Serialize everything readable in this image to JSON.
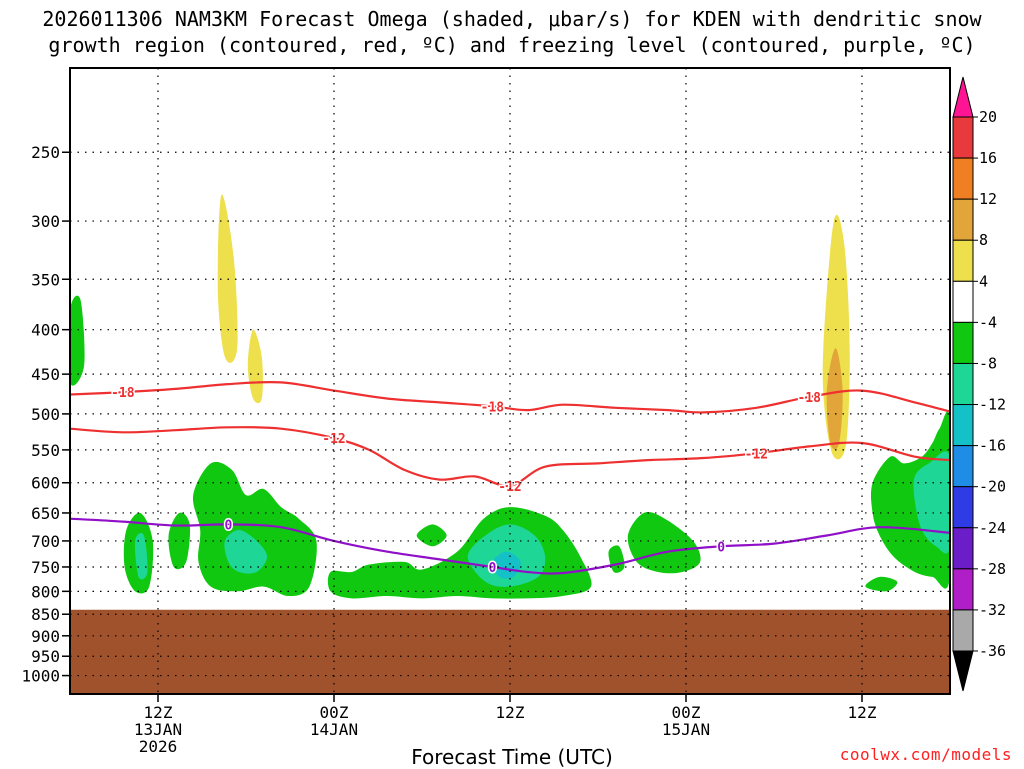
{
  "title_line_1": "2026011306 NAM3KM Forecast Omega (shaded, μbar/s) for KDEN with dendritic snow",
  "title_line_2": "growth region (contoured, red, ºC) and freezing level (contoured, purple, ºC)",
  "watermark": "coolwx.com/models",
  "chart_data": {
    "type": "contour",
    "xlabel": "Forecast Time (UTC)",
    "x_range_hours": [
      -5,
      45
    ],
    "x_ticks": [
      {
        "hour": 0,
        "lines": [
          "12Z",
          "13JAN",
          "2026"
        ]
      },
      {
        "hour": 10,
        "lines": [
          "00Z",
          "14JAN"
        ]
      },
      {
        "hour": 20,
        "lines": [
          "12Z"
        ]
      },
      {
        "hour": 30,
        "lines": [
          "00Z",
          "15JAN"
        ]
      },
      {
        "hour": 40,
        "lines": [
          "12Z"
        ]
      }
    ],
    "y_axis_pressure_hpa": [
      250,
      300,
      350,
      400,
      450,
      500,
      550,
      600,
      650,
      700,
      750,
      800,
      850,
      900,
      950,
      1000
    ],
    "y_range_hpa": [
      200,
      1050
    ],
    "grid": "dotted",
    "surface_pressure_hpa": 840,
    "colorbar": {
      "labels": [
        20,
        16,
        12,
        8,
        4,
        -4,
        -8,
        -12,
        -16,
        -20,
        -24,
        -28,
        -32,
        -36
      ],
      "colors": [
        "#ff1493",
        "#e8393c",
        "#ef7f22",
        "#e1a53a",
        "#eee04c",
        "#ffffff",
        "#0fc80f",
        "#1ed796",
        "#13c1c6",
        "#1f8ce6",
        "#2f3ce6",
        "#6b1ec8",
        "#b01ec8",
        "#a9a9a9",
        "#000000"
      ]
    },
    "isotherm_dgz": {
      "color": "#ee3030",
      "lines": [
        {
          "value": -18,
          "label": "-18",
          "points": [
            [
              -5,
              475
            ],
            [
              -2,
              472
            ],
            [
              1,
              468
            ],
            [
              4,
              462
            ],
            [
              7,
              460
            ],
            [
              10,
              470
            ],
            [
              13,
              480
            ],
            [
              16,
              485
            ],
            [
              19,
              490
            ],
            [
              21,
              495
            ],
            [
              23,
              488
            ],
            [
              26,
              492
            ],
            [
              29,
              495
            ],
            [
              31,
              498
            ],
            [
              34,
              492
            ],
            [
              37,
              478
            ],
            [
              40,
              470
            ],
            [
              43,
              485
            ],
            [
              45,
              497
            ]
          ]
        },
        {
          "value": -12,
          "label": "-12",
          "points": [
            [
              -5,
              520
            ],
            [
              -2,
              525
            ],
            [
              1,
              522
            ],
            [
              4,
              518
            ],
            [
              7,
              520
            ],
            [
              10,
              533
            ],
            [
              12,
              550
            ],
            [
              14,
              580
            ],
            [
              16,
              595
            ],
            [
              18,
              590
            ],
            [
              20,
              605
            ],
            [
              22,
              575
            ],
            [
              25,
              570
            ],
            [
              28,
              565
            ],
            [
              31,
              562
            ],
            [
              34,
              555
            ],
            [
              37,
              545
            ],
            [
              40,
              540
            ],
            [
              43,
              560
            ],
            [
              45,
              565
            ]
          ]
        }
      ]
    },
    "freezing_level": {
      "color": "#9010c8",
      "value": 0,
      "label": "0",
      "points": [
        [
          -5,
          660
        ],
        [
          -2,
          665
        ],
        [
          1,
          672
        ],
        [
          4,
          670
        ],
        [
          7,
          675
        ],
        [
          10,
          700
        ],
        [
          13,
          720
        ],
        [
          16,
          735
        ],
        [
          19,
          750
        ],
        [
          21,
          760
        ],
        [
          23,
          762
        ],
        [
          26,
          745
        ],
        [
          29,
          720
        ],
        [
          32,
          710
        ],
        [
          35,
          705
        ],
        [
          38,
          690
        ],
        [
          41,
          675
        ],
        [
          45,
          685
        ]
      ]
    },
    "omega_shaded_regions": [
      {
        "level": 4,
        "points": [
          [
            -3,
            250
          ],
          [
            -2.6,
            330
          ],
          [
            -3,
            400
          ],
          [
            -2.4,
            430
          ],
          [
            -1.8,
            380
          ],
          [
            -1.9,
            280
          ]
        ]
      },
      {
        "level": 4,
        "points": [
          [
            -0.5,
            600
          ],
          [
            0.5,
            560
          ],
          [
            1,
            540
          ],
          [
            0.6,
            620
          ],
          [
            -0.2,
            640
          ]
        ]
      },
      {
        "level": 4,
        "points": [
          [
            1.6,
            260
          ],
          [
            2.4,
            180
          ],
          [
            3.4,
            230
          ],
          [
            4.6,
            340
          ],
          [
            5.4,
            470
          ],
          [
            6.4,
            560
          ],
          [
            6,
            620
          ],
          [
            5,
            600
          ],
          [
            4,
            540
          ],
          [
            3,
            450
          ],
          [
            2.2,
            360
          ]
        ]
      },
      {
        "level": 8,
        "points": [
          [
            3.6,
            280
          ],
          [
            4.3,
            330
          ],
          [
            4.5,
            420
          ],
          [
            3.8,
            430
          ],
          [
            3.4,
            360
          ]
        ]
      },
      {
        "level": 8,
        "points": [
          [
            5.4,
            400
          ],
          [
            5.9,
            430
          ],
          [
            5.9,
            480
          ],
          [
            5.4,
            480
          ],
          [
            5.1,
            440
          ]
        ]
      },
      {
        "level": 4,
        "points": [
          [
            10.6,
            410
          ],
          [
            11.3,
            360
          ],
          [
            12.3,
            380
          ],
          [
            13,
            430
          ],
          [
            13.6,
            510
          ],
          [
            13.3,
            570
          ],
          [
            12.5,
            580
          ],
          [
            11.6,
            540
          ],
          [
            10.9,
            470
          ]
        ]
      },
      {
        "level": 4,
        "points": [
          [
            17,
            470
          ],
          [
            18,
            350
          ],
          [
            19,
            260
          ],
          [
            20.4,
            280
          ],
          [
            21.1,
            400
          ],
          [
            20.8,
            470
          ],
          [
            20,
            510
          ],
          [
            19,
            520
          ],
          [
            18,
            500
          ]
        ]
      },
      {
        "level": 4,
        "points": [
          [
            23.2,
            470
          ],
          [
            23.8,
            420
          ],
          [
            24.5,
            440
          ],
          [
            24.3,
            490
          ],
          [
            23.6,
            510
          ]
        ]
      },
      {
        "level": 4,
        "points": [
          [
            25.5,
            290
          ],
          [
            26.3,
            180
          ],
          [
            27.3,
            260
          ],
          [
            28.3,
            340
          ],
          [
            29.2,
            440
          ],
          [
            28.9,
            520
          ],
          [
            28,
            530
          ],
          [
            27,
            470
          ],
          [
            26,
            390
          ]
        ]
      },
      {
        "level": 4,
        "points": [
          [
            29.5,
            350
          ],
          [
            30,
            290
          ],
          [
            30.6,
            320
          ],
          [
            30.4,
            390
          ],
          [
            29.8,
            400
          ]
        ]
      },
      {
        "level": 4,
        "points": [
          [
            36.8,
            520
          ],
          [
            37.2,
            400
          ],
          [
            37.8,
            260
          ],
          [
            38.6,
            250
          ],
          [
            39.6,
            340
          ],
          [
            40.2,
            460
          ],
          [
            39.8,
            580
          ],
          [
            38.8,
            640
          ],
          [
            37.6,
            630
          ]
        ]
      },
      {
        "level": 8,
        "points": [
          [
            37.8,
            420
          ],
          [
            38.4,
            300
          ],
          [
            39,
            320
          ],
          [
            39.3,
            420
          ],
          [
            39.1,
            540
          ],
          [
            38.4,
            560
          ],
          [
            37.9,
            500
          ]
        ]
      },
      {
        "level": 12,
        "points": [
          [
            38,
            470
          ],
          [
            38.5,
            420
          ],
          [
            38.9,
            470
          ],
          [
            38.7,
            540
          ],
          [
            38.2,
            540
          ]
        ]
      },
      {
        "level": 4,
        "points": [
          [
            41.5,
            420
          ],
          [
            42.2,
            280
          ],
          [
            43.2,
            220
          ],
          [
            44.8,
            210
          ],
          [
            45,
            300
          ],
          [
            44.6,
            400
          ],
          [
            43.6,
            470
          ],
          [
            42.4,
            470
          ]
        ]
      },
      {
        "level": -4,
        "points": [
          [
            -5,
            380
          ],
          [
            -4.4,
            370
          ],
          [
            -4.2,
            440
          ],
          [
            -5,
            460
          ]
        ]
      },
      {
        "level": -4,
        "points": [
          [
            -1.8,
            680
          ],
          [
            -1,
            650
          ],
          [
            -0.3,
            700
          ],
          [
            -0.5,
            790
          ],
          [
            -1.3,
            800
          ],
          [
            -1.9,
            750
          ]
        ]
      },
      {
        "level": -8,
        "points": [
          [
            -1.3,
            700
          ],
          [
            -0.8,
            690
          ],
          [
            -0.6,
            760
          ],
          [
            -1.1,
            770
          ]
        ]
      },
      {
        "level": -4,
        "points": [
          [
            0.6,
            690
          ],
          [
            1.2,
            650
          ],
          [
            1.8,
            670
          ],
          [
            1.6,
            740
          ],
          [
            0.9,
            750
          ]
        ]
      },
      {
        "level": -4,
        "points": [
          [
            2,
            620
          ],
          [
            3,
            570
          ],
          [
            4.2,
            580
          ],
          [
            5,
            620
          ],
          [
            6,
            610
          ],
          [
            7,
            640
          ],
          [
            8,
            660
          ],
          [
            9,
            700
          ],
          [
            8.6,
            790
          ],
          [
            7.4,
            810
          ],
          [
            6,
            790
          ],
          [
            4.5,
            800
          ],
          [
            3,
            790
          ],
          [
            2.3,
            740
          ],
          [
            2.4,
            680
          ]
        ]
      },
      {
        "level": -8,
        "points": [
          [
            3.8,
            700
          ],
          [
            4.6,
            680
          ],
          [
            5.6,
            700
          ],
          [
            6.2,
            730
          ],
          [
            5.6,
            760
          ],
          [
            4.6,
            760
          ],
          [
            4,
            740
          ]
        ]
      },
      {
        "level": -4,
        "points": [
          [
            9.8,
            760
          ],
          [
            11,
            760
          ],
          [
            12,
            745
          ],
          [
            14,
            740
          ],
          [
            15,
            755
          ],
          [
            17,
            720
          ],
          [
            18.5,
            660
          ],
          [
            20,
            640
          ],
          [
            22,
            655
          ],
          [
            23,
            680
          ],
          [
            24,
            730
          ],
          [
            24.6,
            790
          ],
          [
            23,
            810
          ],
          [
            21,
            815
          ],
          [
            19,
            815
          ],
          [
            17,
            810
          ],
          [
            15,
            815
          ],
          [
            13,
            810
          ],
          [
            11,
            815
          ],
          [
            9.8,
            800
          ]
        ]
      },
      {
        "level": -8,
        "points": [
          [
            17.6,
            730
          ],
          [
            18.6,
            690
          ],
          [
            20,
            670
          ],
          [
            21.4,
            690
          ],
          [
            22,
            730
          ],
          [
            21.6,
            770
          ],
          [
            20,
            790
          ],
          [
            18.6,
            780
          ]
        ]
      },
      {
        "level": -12,
        "points": [
          [
            19,
            740
          ],
          [
            19.8,
            720
          ],
          [
            20.6,
            740
          ],
          [
            20.2,
            770
          ],
          [
            19.4,
            770
          ]
        ]
      },
      {
        "level": -4,
        "points": [
          [
            26.7,
            690
          ],
          [
            27.6,
            650
          ],
          [
            28.8,
            660
          ],
          [
            30.4,
            700
          ],
          [
            30.8,
            740
          ],
          [
            29.8,
            760
          ],
          [
            28.4,
            760
          ],
          [
            27.2,
            740
          ]
        ]
      },
      {
        "level": -4,
        "points": [
          [
            14.7,
            690
          ],
          [
            15.6,
            670
          ],
          [
            16.4,
            690
          ],
          [
            15.6,
            710
          ]
        ]
      },
      {
        "level": -4,
        "points": [
          [
            25.6,
            720
          ],
          [
            26.2,
            710
          ],
          [
            26.5,
            750
          ],
          [
            25.9,
            760
          ]
        ]
      },
      {
        "level": -4,
        "points": [
          [
            40.2,
            790
          ],
          [
            41,
            770
          ],
          [
            42,
            780
          ],
          [
            41.4,
            800
          ]
        ]
      },
      {
        "level": -4,
        "points": [
          [
            40.6,
            600
          ],
          [
            41.6,
            560
          ],
          [
            42.4,
            570
          ],
          [
            43.4,
            560
          ],
          [
            44,
            540
          ],
          [
            44.4,
            520
          ],
          [
            45,
            510
          ],
          [
            45,
            770
          ],
          [
            44,
            770
          ],
          [
            43,
            760
          ],
          [
            41.8,
            730
          ],
          [
            41,
            690
          ],
          [
            40.6,
            650
          ]
        ]
      },
      {
        "level": -8,
        "points": [
          [
            43,
            590
          ],
          [
            43.8,
            570
          ],
          [
            45,
            560
          ],
          [
            45,
            710
          ],
          [
            44.2,
            710
          ],
          [
            43.4,
            680
          ],
          [
            43,
            630
          ]
        ]
      }
    ]
  }
}
